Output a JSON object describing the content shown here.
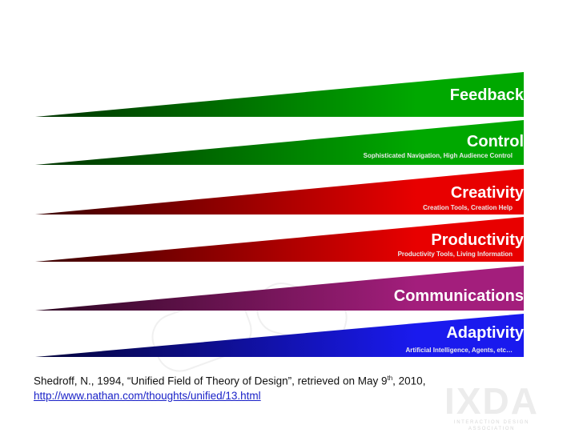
{
  "bands": [
    {
      "title": "Feedback",
      "subtitle": "",
      "color_light": "#00a800",
      "color_dark": "#003300"
    },
    {
      "title": "Control",
      "subtitle": "Sophisticated Navigation, High Audience Control",
      "color_light": "#00a800",
      "color_dark": "#003300"
    },
    {
      "title": "Creativity",
      "subtitle": "Creation Tools, Creation Help",
      "color_light": "#e80000",
      "color_dark": "#3a0000"
    },
    {
      "title": "Productivity",
      "subtitle": "Productivity Tools, Living Information",
      "color_light": "#e80000",
      "color_dark": "#3a0000"
    },
    {
      "title": "Communications",
      "subtitle": "",
      "color_light": "#a31e7c",
      "color_dark": "#2e0824"
    },
    {
      "title": "Adaptivity",
      "subtitle": "Artificial Intelligence, Agents, etc…",
      "color_light": "#1a1aee",
      "color_dark": "#04043a"
    }
  ],
  "citation": {
    "prefix": "Shedroff, N., 1994, “Unified Field of Theory of Design”, retrieved on May 9",
    "superscript": "th",
    "suffix": ", 2010,",
    "link": "http://www.nathan.com/thoughts/unified/13.html"
  },
  "logo": {
    "mark": "IXDA",
    "tagline": "INTERACTION DESIGN ASSOCIATION"
  }
}
